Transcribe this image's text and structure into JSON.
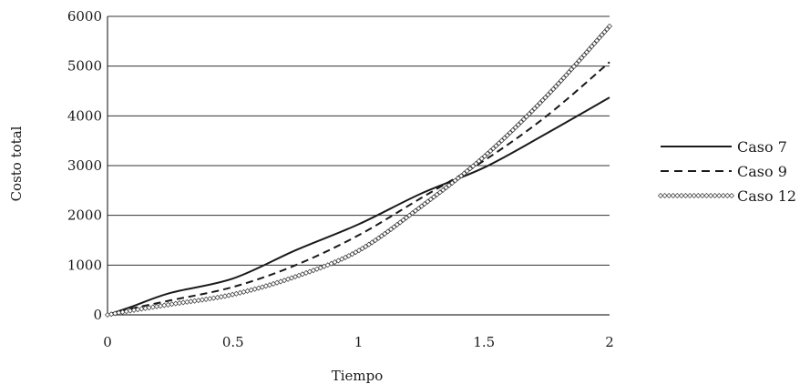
{
  "chart_data": {
    "type": "line",
    "title": "",
    "xlabel": "Tiempo",
    "ylabel": "Costo total",
    "xlim": [
      0,
      2
    ],
    "ylim": [
      0,
      6000
    ],
    "xticks": [
      0,
      0.5,
      1,
      1.5,
      2
    ],
    "xtick_labels": [
      "0",
      "0.5",
      "1",
      "1.5",
      "2"
    ],
    "yticks": [
      0,
      1000,
      2000,
      3000,
      4000,
      5000,
      6000
    ],
    "ytick_labels": [
      "0",
      "1000",
      "2000",
      "3000",
      "4000",
      "5000",
      "6000"
    ],
    "grid": "horizontal",
    "legend_position": "right",
    "series": [
      {
        "name": "Caso 7",
        "style": "solid",
        "x": [
          0,
          0.1,
          0.25,
          0.5,
          0.75,
          1.0,
          1.25,
          1.5,
          1.75,
          2.0
        ],
        "y": [
          0,
          170,
          440,
          730,
          1300,
          1820,
          2440,
          2960,
          3650,
          4370
        ]
      },
      {
        "name": "Caso 9",
        "style": "dashed",
        "x": [
          0,
          0.1,
          0.25,
          0.5,
          0.75,
          1.0,
          1.25,
          1.5,
          1.75,
          2.0
        ],
        "y": [
          0,
          130,
          290,
          560,
          1000,
          1600,
          2350,
          3100,
          4000,
          5080
        ]
      },
      {
        "name": "Caso 12",
        "style": "markers",
        "x": [
          0,
          0.1,
          0.25,
          0.5,
          0.75,
          1.0,
          1.25,
          1.5,
          1.75,
          2.0
        ],
        "y": [
          0,
          90,
          210,
          410,
          770,
          1290,
          2180,
          3180,
          4400,
          5800
        ]
      }
    ]
  }
}
